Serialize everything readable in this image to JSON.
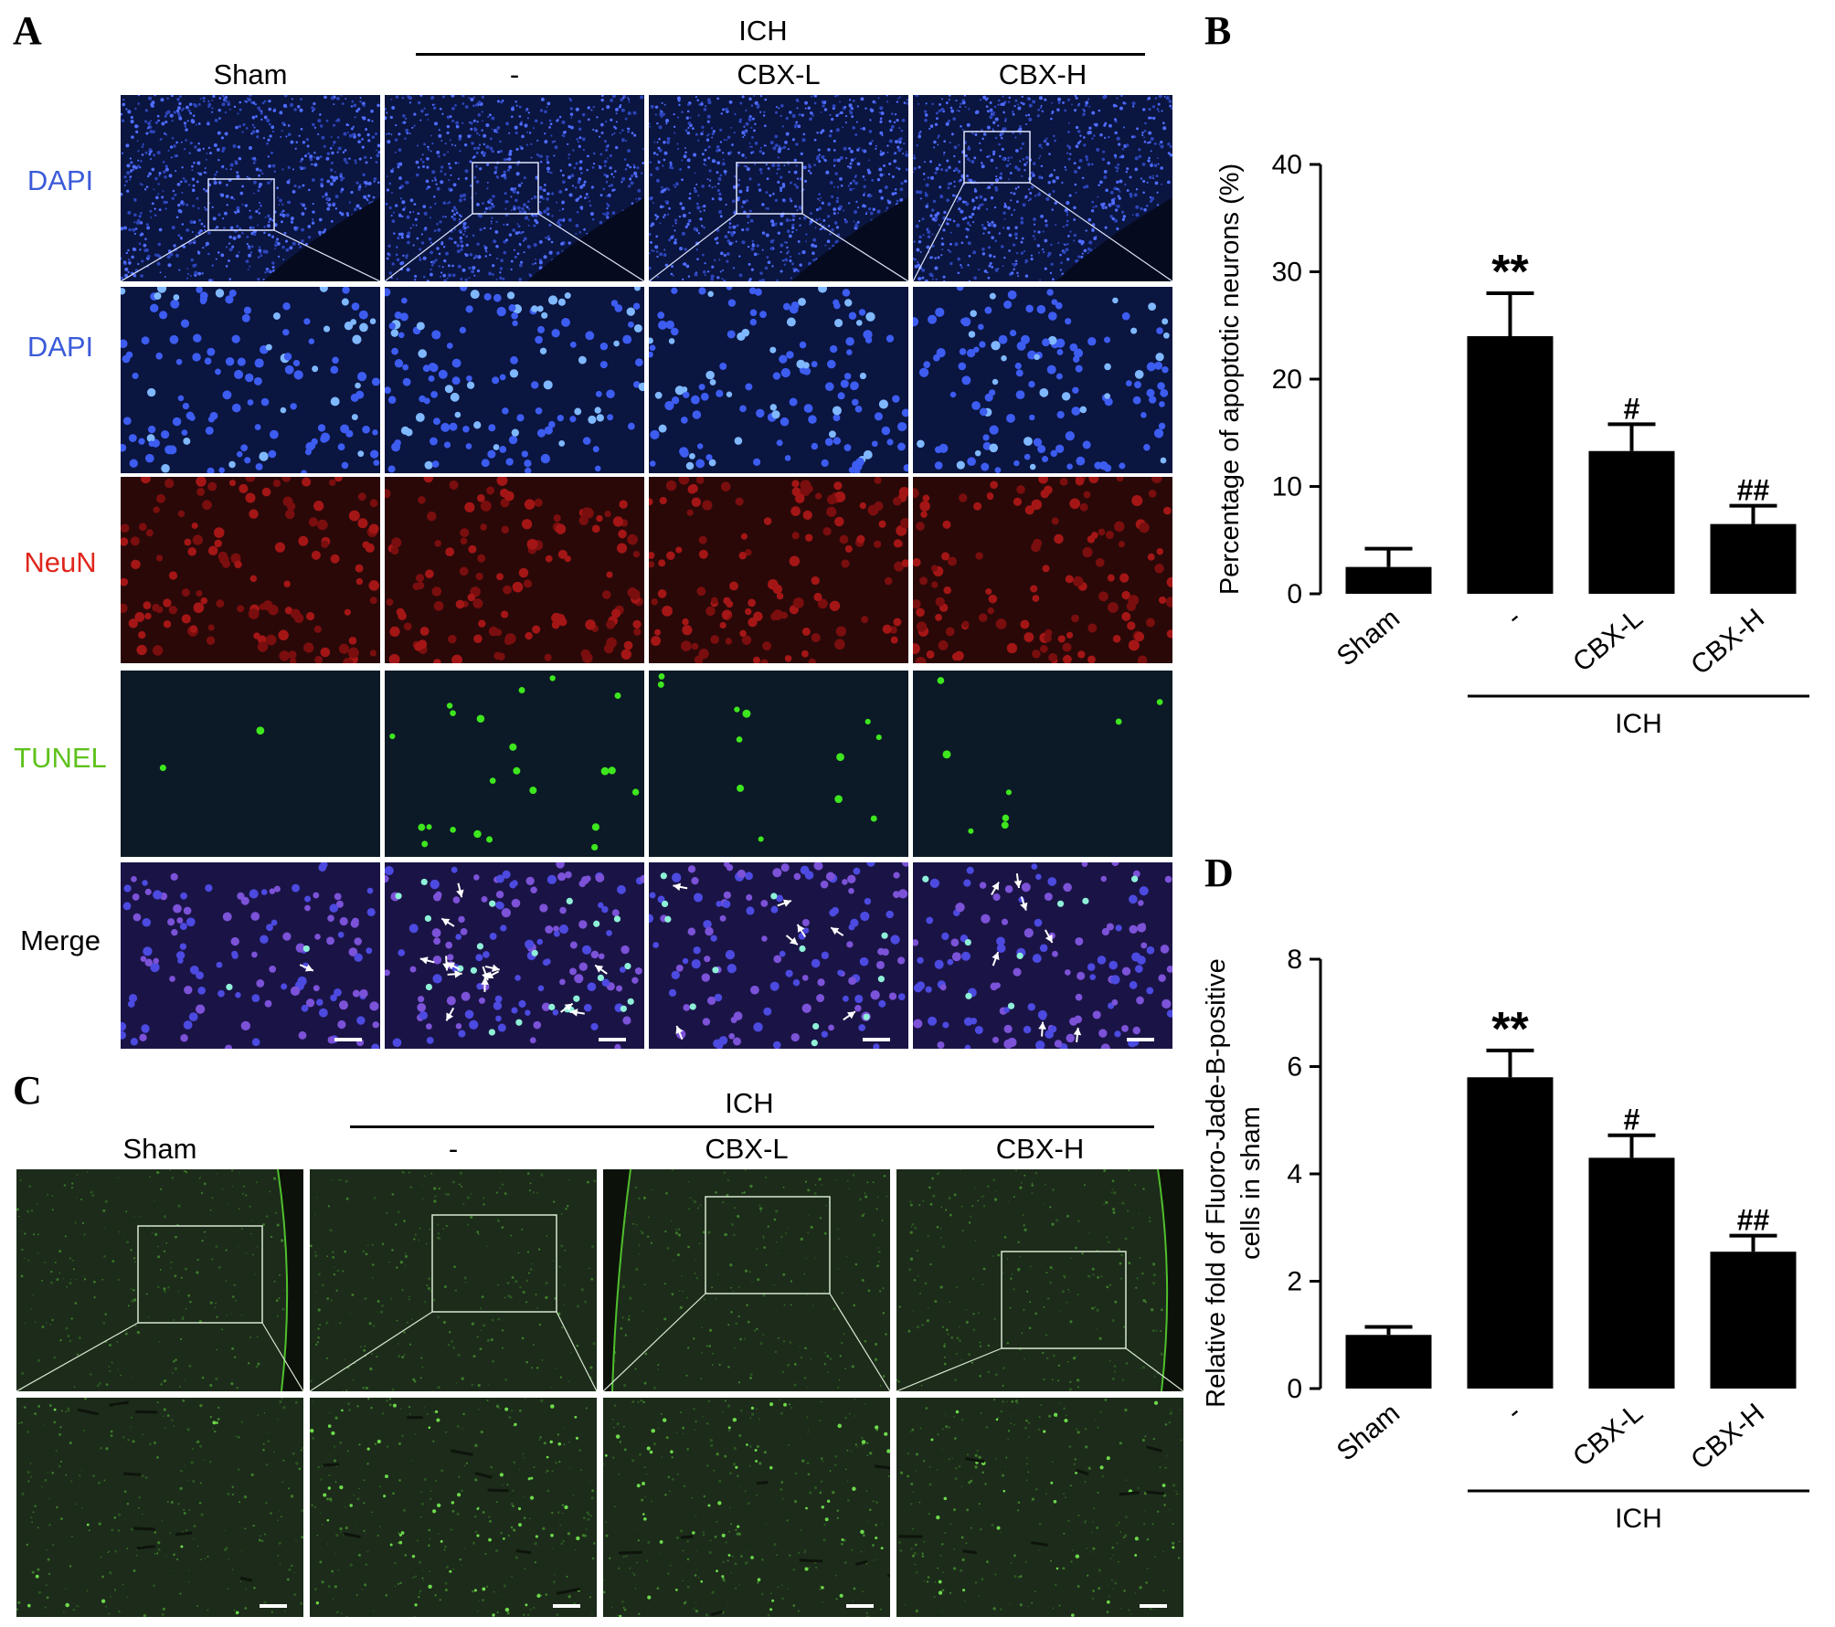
{
  "panels": {
    "A": "A",
    "B": "B",
    "C": "C",
    "D": "D"
  },
  "panel_a": {
    "group_label": "ICH",
    "columns": [
      "Sham",
      "-",
      "CBX-L",
      "CBX-H"
    ],
    "rows": [
      {
        "label": "DAPI",
        "color": "#3a5bd9"
      },
      {
        "label": "DAPI",
        "color": "#3a5bd9"
      },
      {
        "label": "NeuN",
        "color": "#e0261c"
      },
      {
        "label": "TUNEL",
        "color": "#5ec21c"
      },
      {
        "label": "Merge",
        "color": "#000000"
      }
    ]
  },
  "panel_c": {
    "group_label": "ICH",
    "columns": [
      "Sham",
      "-",
      "CBX-L",
      "CBX-H"
    ]
  },
  "colors": {
    "dapi": "#2f4fd8",
    "neun": "#b81414",
    "tunel": "#34d21c",
    "fjb": "#2c6a20",
    "bar": "#000000"
  },
  "chart_data": [
    {
      "type": "bar",
      "panel": "B",
      "categories": [
        "Sham",
        "-",
        "CBX-L",
        "CBX-H"
      ],
      "values": [
        2.5,
        24,
        13.3,
        6.5
      ],
      "errors": [
        1.7,
        4,
        2.5,
        1.7
      ],
      "significance": [
        "",
        "**",
        "#",
        "##"
      ],
      "ylabel": "Percentage of apoptotic neurons (%)",
      "ylim": [
        0,
        40
      ],
      "yticks": [
        "0",
        "10",
        "20",
        "30",
        "40"
      ],
      "group_label": "ICH"
    },
    {
      "type": "bar",
      "panel": "D",
      "categories": [
        "Sham",
        "-",
        "CBX-L",
        "CBX-H"
      ],
      "values": [
        1.0,
        5.8,
        4.3,
        2.55
      ],
      "errors": [
        0.15,
        0.5,
        0.42,
        0.3
      ],
      "significance": [
        "",
        "**",
        "#",
        "##"
      ],
      "ylabel_lines": [
        "Relative fold of Fluoro-Jade-B-positive",
        "cells in sham"
      ],
      "ylim": [
        0,
        8
      ],
      "yticks": [
        "0",
        "2",
        "4",
        "6",
        "8"
      ],
      "group_label": "ICH"
    }
  ]
}
